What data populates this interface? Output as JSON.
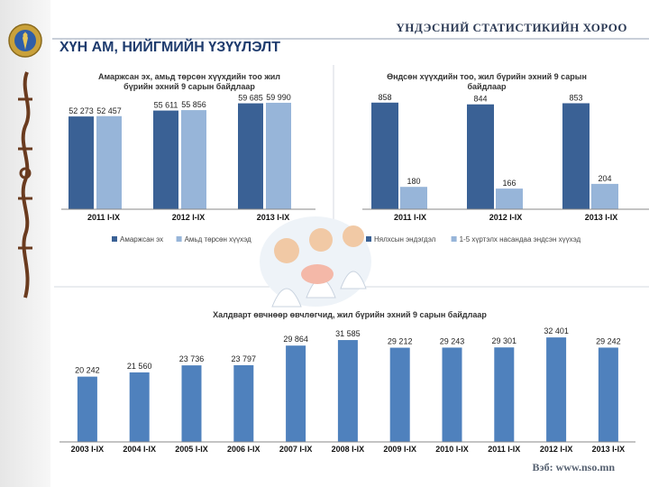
{
  "header": {
    "organization": "ҮНДЭСНИЙ СТАТИСТИКИЙН ХОРОО",
    "title": "ХҮН АМ, НИЙГМИЙН ҮЗҮҮЛЭЛТ",
    "footer": "Вэб: www.nso.mn"
  },
  "colors": {
    "dark": "#3a6195",
    "light": "#97b5d9",
    "mid": "#4f81bd",
    "title": "#1f3c6e"
  },
  "chart_data": [
    {
      "type": "bar",
      "title_lines": [
        "Амаржсан эх, амьд төрсөн хүүхдийн тоо жил",
        "бүрийн эхний 9 сарын байдлаар"
      ],
      "categories": [
        "2011 I-IX",
        "2012 I-IX",
        "2013 I-IX"
      ],
      "series": [
        {
          "name": "Амаржсан эх",
          "values": [
            52273,
            55611,
            59685
          ],
          "labels": [
            "52 273",
            "55 611",
            "59 685"
          ]
        },
        {
          "name": "Амьд төрсөн хүүхэд",
          "values": [
            52457,
            55856,
            59990
          ],
          "labels": [
            "52 457",
            "55 856",
            "59 990"
          ]
        }
      ],
      "legend": "bottom"
    },
    {
      "type": "bar",
      "title_lines": [
        "Өндсөн хүүхдийн тоо, жил бүрийн эхний 9 сарын",
        "байдлаар"
      ],
      "categories": [
        "2011 I-IX",
        "2012 I-IX",
        "2013 I-IX"
      ],
      "series": [
        {
          "name": "Нялхсын эндэгдэл",
          "values": [
            858,
            844,
            853
          ],
          "labels": [
            "858",
            "844",
            "853"
          ]
        },
        {
          "name": "1-5 хүртэлх насандаа эндсэн хүүхэд",
          "values": [
            180,
            166,
            204
          ],
          "labels": [
            "180",
            "166",
            "204"
          ]
        }
      ],
      "legend": "bottom"
    },
    {
      "type": "bar",
      "title": "Халдварт өвчнөөр өвчлөгчид, жил бүрийн эхний 9 сарын байдлаар",
      "categories": [
        "2003 I-IX",
        "2004 I-IX",
        "2005 I-IX",
        "2006 I-IX",
        "2007 I-IX",
        "2008 I-IX",
        "2009 I-IX",
        "2010 I-IX",
        "2011 I-IX",
        "2012 I-IX",
        "2013 I-IX"
      ],
      "values": [
        20242,
        21560,
        23736,
        23797,
        29864,
        31585,
        29212,
        29243,
        29301,
        32401,
        29242
      ],
      "labels": [
        "20 242",
        "21 560",
        "23 736",
        "23 797",
        "29 864",
        "31 585",
        "29 212",
        "29 243",
        "29 301",
        "32 401",
        "29 242"
      ]
    }
  ]
}
